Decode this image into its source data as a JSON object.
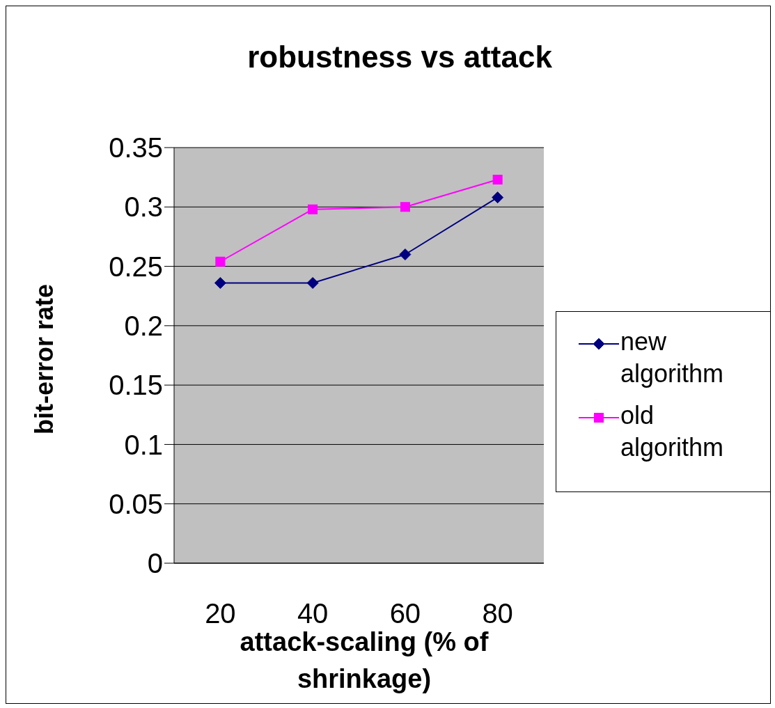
{
  "chart_data": {
    "type": "line",
    "title": "robustness vs attack",
    "xlabel": "attack-scaling (% of shrinkage)",
    "ylabel": "bit-error rate",
    "categories": [
      "20",
      "40",
      "60",
      "80"
    ],
    "series": [
      {
        "name": "new algorithm",
        "color": "#000080",
        "marker": "diamond",
        "values": [
          0.236,
          0.236,
          0.26,
          0.308
        ]
      },
      {
        "name": "old algorithm",
        "color": "#ff00ff",
        "marker": "square",
        "values": [
          0.254,
          0.298,
          0.3,
          0.323
        ]
      }
    ],
    "ylim": [
      0,
      0.35
    ],
    "yticks": [
      0,
      0.05,
      0.1,
      0.15,
      0.2,
      0.25,
      0.3,
      0.35
    ],
    "grid": "y",
    "legend": "right",
    "line_style": "solid"
  }
}
